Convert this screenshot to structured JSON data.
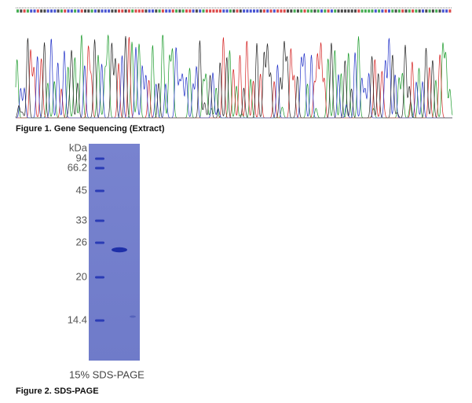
{
  "figures": [
    {
      "caption": "Figure 1. Gene Sequencing (Extract)"
    },
    {
      "caption": "Figure 2. SDS-PAGE",
      "gel": {
        "unit": "kDa",
        "markers": [
          94,
          66.2,
          45,
          33,
          26,
          20,
          14.4
        ],
        "label": "15% SDS-PAGE"
      }
    }
  ]
}
